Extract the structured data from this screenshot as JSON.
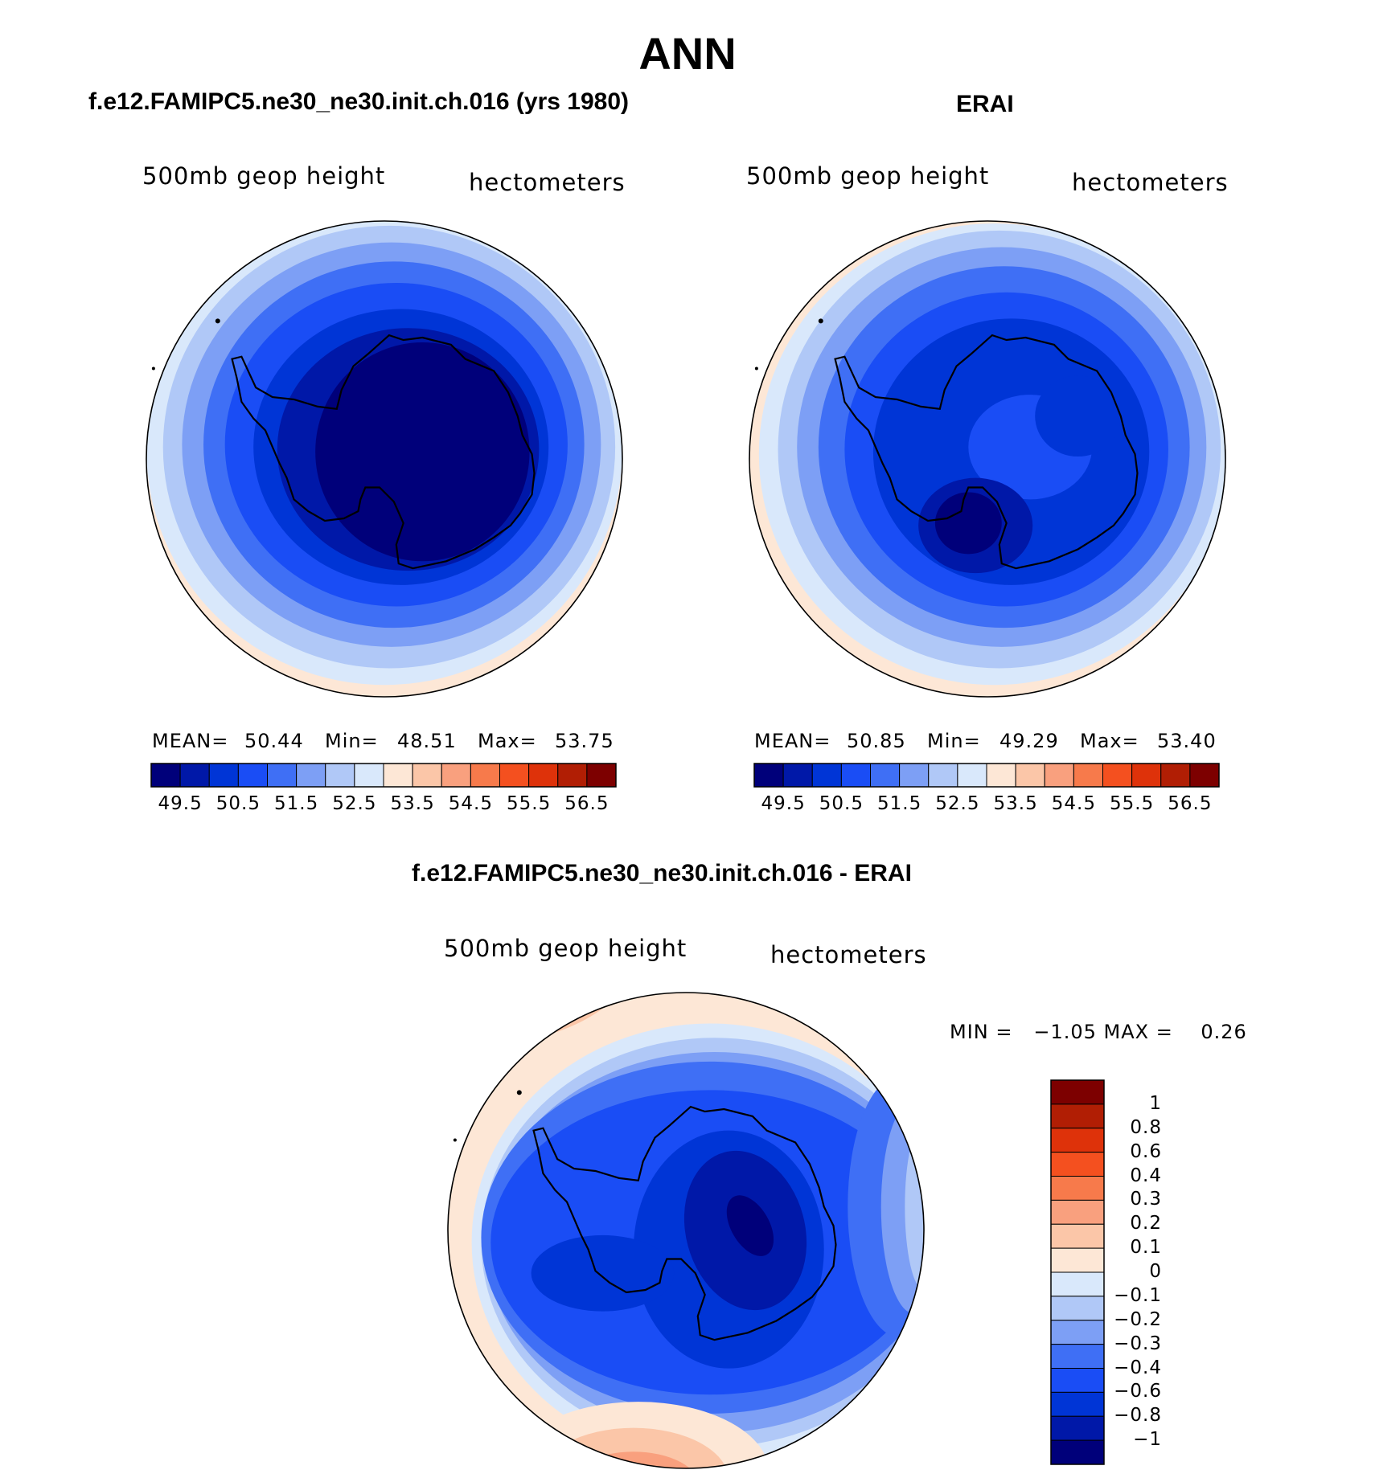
{
  "chart_data": [
    {
      "type": "heatmap",
      "panel": "test",
      "title": "f.e12.FAMIPC5.ne30_ne30.init.ch.016 (yrs 1980)",
      "variable": "500mb geop height",
      "units": "hectometers",
      "projection": "south polar stereographic",
      "stats": {
        "mean_label": "MEAN=",
        "mean": "50.44",
        "min_label": "Min=",
        "min": "48.51",
        "max_label": "Max=",
        "max": "53.75"
      },
      "colorbar_ticks": [
        "49.5",
        "50.5",
        "51.5",
        "52.5",
        "53.5",
        "54.5",
        "55.5",
        "56.5"
      ],
      "contour_levels": [
        49.5,
        50,
        50.5,
        51,
        51.5,
        52,
        52.5,
        53,
        53.5,
        54,
        54.5,
        55,
        55.5,
        56,
        56.5
      ]
    },
    {
      "type": "heatmap",
      "panel": "obs",
      "title": "ERAI",
      "variable": "500mb geop height",
      "units": "hectometers",
      "projection": "south polar stereographic",
      "stats": {
        "mean_label": "MEAN=",
        "mean": "50.85",
        "min_label": "Min=",
        "min": "49.29",
        "max_label": "Max=",
        "max": "53.40"
      },
      "colorbar_ticks": [
        "49.5",
        "50.5",
        "51.5",
        "52.5",
        "53.5",
        "54.5",
        "55.5",
        "56.5"
      ],
      "contour_levels": [
        49.5,
        50,
        50.5,
        51,
        51.5,
        52,
        52.5,
        53,
        53.5,
        54,
        54.5,
        55,
        55.5,
        56,
        56.5
      ]
    },
    {
      "type": "heatmap",
      "panel": "difference",
      "title": "f.e12.FAMIPC5.ne30_ne30.init.ch.016 - ERAI",
      "variable": "500mb geop height",
      "units": "hectometers",
      "projection": "south polar stereographic",
      "stats": {
        "text": "MIN =   −1.05 MAX =    0.26",
        "min": -1.05,
        "max": 0.26
      },
      "colorbar_ticks": [
        "1",
        "0.8",
        "0.6",
        "0.4",
        "0.3",
        "0.2",
        "0.1",
        "0",
        "−0.1",
        "−0.2",
        "−0.3",
        "−0.4",
        "−0.6",
        "−0.8",
        "−1"
      ],
      "contour_levels": [
        -1,
        -0.8,
        -0.6,
        -0.4,
        -0.3,
        -0.2,
        -0.1,
        0,
        0.1,
        0.2,
        0.3,
        0.4,
        0.6,
        0.8,
        1
      ]
    }
  ],
  "main_title": "ANN",
  "colors": [
    "#00007a",
    "#0018a8",
    "#0035d6",
    "#1a4df5",
    "#3f6ff5",
    "#7d9ff5",
    "#b0c8f7",
    "#d9e8fb",
    "#fde7d6",
    "#fbc6a8",
    "#f9a07e",
    "#f77a4b",
    "#f4501f",
    "#de320a",
    "#b11e04",
    "#7d0000"
  ]
}
